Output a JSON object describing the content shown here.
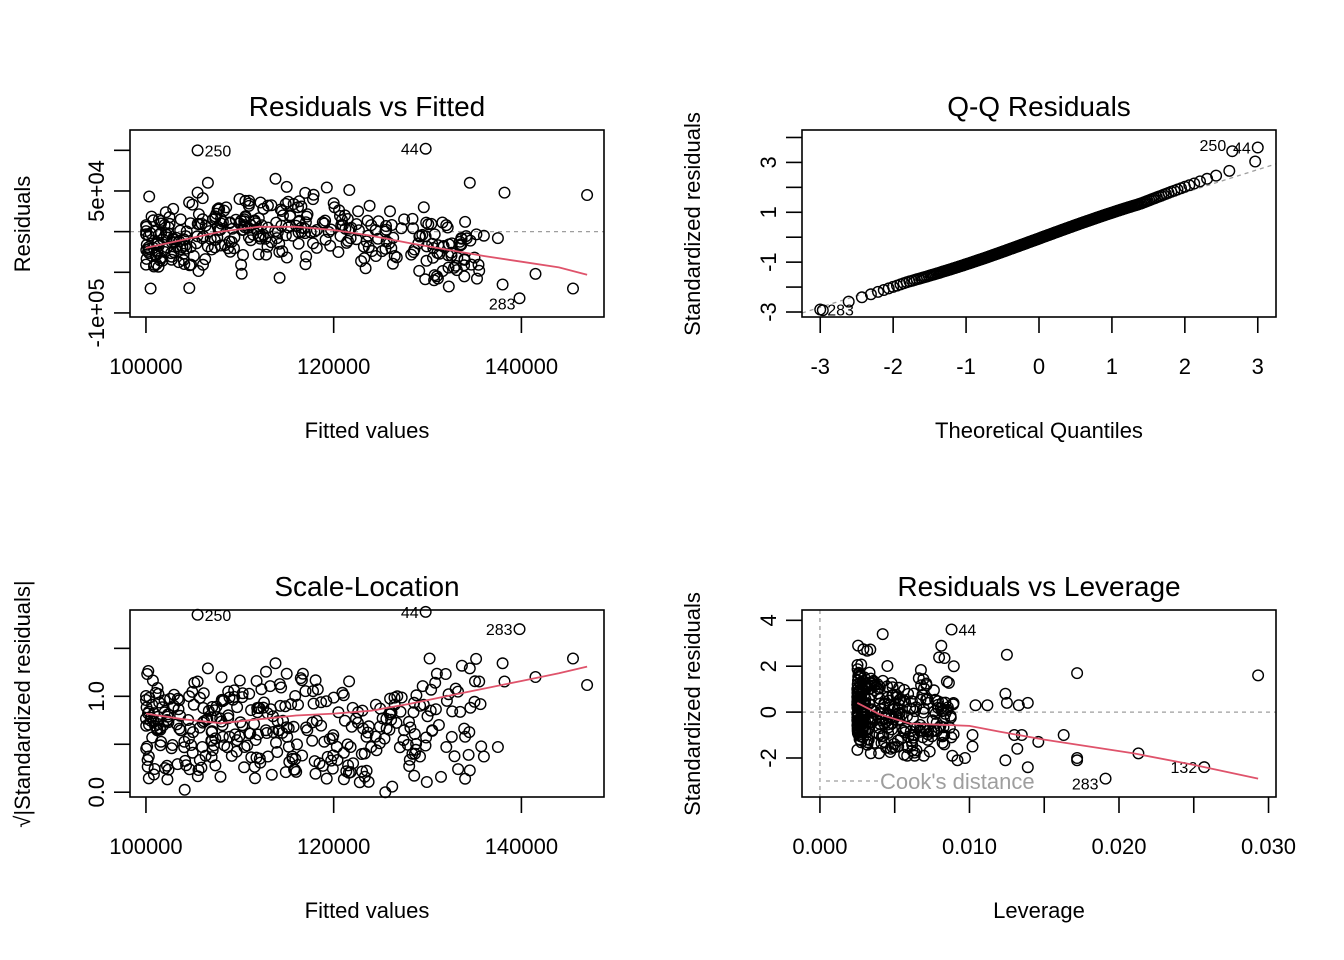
{
  "chart_data": [
    {
      "id": "residuals-vs-fitted",
      "type": "scatter",
      "title": "Residuals vs Fitted",
      "xlabel": "Fitted values",
      "ylabel": "Residuals",
      "xlim": [
        98300,
        148800
      ],
      "ylim": [
        -105000,
        125000
      ],
      "xticks": [
        100000,
        120000,
        140000
      ],
      "xtick_labels": [
        "100000",
        "120000",
        "140000"
      ],
      "yticks": [
        -100000,
        -50000,
        0,
        50000,
        100000
      ],
      "ytick_labels": [
        "-1e+05",
        "",
        "",
        "5e+04",
        ""
      ],
      "reference_line": {
        "y": 0,
        "style": "dotted"
      },
      "smooth_color": "#DF536B",
      "smooth": [
        [
          100000,
          -20000
        ],
        [
          104000,
          -10000
        ],
        [
          108000,
          0
        ],
        [
          112000,
          6000
        ],
        [
          116000,
          6000
        ],
        [
          120000,
          2000
        ],
        [
          124000,
          -5000
        ],
        [
          128000,
          -14000
        ],
        [
          132000,
          -22000
        ],
        [
          136000,
          -30000
        ],
        [
          140000,
          -37000
        ],
        [
          144000,
          -44000
        ],
        [
          147000,
          -53000
        ]
      ],
      "labeled_points": [
        {
          "label": "250",
          "x": 105500,
          "y": 100000
        },
        {
          "label": "44",
          "x": 129800,
          "y": 102000
        },
        {
          "label": "283",
          "x": 139800,
          "y": -82000
        }
      ],
      "points_sample": [
        [
          100300,
          -5000
        ],
        [
          100800,
          -20000
        ],
        [
          101200,
          -15000
        ],
        [
          101600,
          10000
        ],
        [
          102000,
          -25000
        ],
        [
          102400,
          -2000
        ],
        [
          102900,
          28000
        ],
        [
          103300,
          -18000
        ],
        [
          103700,
          15000
        ],
        [
          104100,
          -10000
        ],
        [
          104600,
          36000
        ],
        [
          105100,
          -30000
        ],
        [
          105500,
          48000
        ],
        [
          106000,
          -8000
        ],
        [
          106600,
          60000
        ],
        [
          107000,
          -22000
        ],
        [
          107500,
          22000
        ],
        [
          108200,
          12000
        ],
        [
          108900,
          -12000
        ],
        [
          110500,
          8000
        ],
        [
          111000,
          38000
        ],
        [
          112000,
          -28000
        ],
        [
          112500,
          28000
        ],
        [
          113000,
          5000
        ],
        [
          113800,
          65000
        ],
        [
          114200,
          -15000
        ],
        [
          114600,
          20000
        ],
        [
          115000,
          55000
        ],
        [
          115600,
          -5000
        ],
        [
          116200,
          30000
        ],
        [
          117000,
          -40000
        ],
        [
          117800,
          40000
        ],
        [
          118200,
          -20000
        ],
        [
          119000,
          10000
        ],
        [
          120000,
          35000
        ],
        [
          120500,
          -25000
        ],
        [
          121200,
          20000
        ],
        [
          121800,
          -8000
        ],
        [
          122600,
          25000
        ],
        [
          123500,
          -12000
        ],
        [
          124000,
          8000
        ],
        [
          124500,
          -30000
        ],
        [
          125500,
          0
        ],
        [
          126000,
          25000
        ],
        [
          126500,
          -30000
        ],
        [
          127500,
          15000
        ],
        [
          128500,
          -25000
        ],
        [
          129200,
          -5000
        ],
        [
          129600,
          30000
        ],
        [
          130500,
          -15000
        ],
        [
          131000,
          -55000
        ],
        [
          132000,
          8000
        ],
        [
          133000,
          -42000
        ],
        [
          134000,
          12000
        ],
        [
          134500,
          60000
        ],
        [
          135000,
          -32000
        ],
        [
          135500,
          -48000
        ],
        [
          136000,
          -5000
        ],
        [
          137500,
          -8000
        ],
        [
          138000,
          -65000
        ],
        [
          138200,
          48000
        ],
        [
          141500,
          -52000
        ],
        [
          145500,
          -70000
        ],
        [
          147000,
          45000
        ]
      ]
    },
    {
      "id": "qq-residuals",
      "type": "scatter",
      "title": "Q-Q Residuals",
      "xlabel": "Theoretical Quantiles",
      "ylabel": "Standardized residuals",
      "xlim": [
        -3.25,
        3.25
      ],
      "ylim": [
        -3.2,
        4.3
      ],
      "xticks": [
        -3,
        -2,
        -1,
        0,
        1,
        2,
        3
      ],
      "xtick_labels": [
        "-3",
        "-2",
        "-1",
        "0",
        "1",
        "2",
        "3"
      ],
      "yticks": [
        -3,
        -2,
        -1,
        0,
        1,
        2,
        3,
        4
      ],
      "ytick_labels": [
        "-3",
        "",
        "-1",
        "",
        "1",
        "",
        "3",
        ""
      ],
      "reference_line": {
        "slope": 0.92,
        "intercept": -0.05,
        "style": "dotted"
      },
      "labeled_points": [
        {
          "label": "283",
          "x": -3.0,
          "y": -2.9
        },
        {
          "label": "250",
          "x": 2.65,
          "y": 3.45
        },
        {
          "label": "44",
          "x": 3.0,
          "y": 3.6
        }
      ]
    },
    {
      "id": "scale-location",
      "type": "scatter",
      "title": "Scale-Location",
      "xlabel": "Fitted values",
      "ylabel": "√|Standardized residuals|",
      "xlim": [
        98300,
        148800
      ],
      "ylim": [
        -0.05,
        1.9
      ],
      "xticks": [
        100000,
        120000,
        140000
      ],
      "xtick_labels": [
        "100000",
        "120000",
        "140000"
      ],
      "yticks": [
        0,
        0.5,
        1.0,
        1.5
      ],
      "ytick_labels": [
        "0.0",
        "",
        "1.0",
        ""
      ],
      "smooth_color": "#DF536B",
      "smooth": [
        [
          100000,
          0.82
        ],
        [
          104000,
          0.76
        ],
        [
          108000,
          0.72
        ],
        [
          112000,
          0.76
        ],
        [
          116000,
          0.8
        ],
        [
          120000,
          0.82
        ],
        [
          124000,
          0.85
        ],
        [
          128000,
          0.92
        ],
        [
          132000,
          1.0
        ],
        [
          136000,
          1.08
        ],
        [
          140000,
          1.16
        ],
        [
          144000,
          1.24
        ],
        [
          147000,
          1.31
        ]
      ],
      "labeled_points": [
        {
          "label": "250",
          "x": 105500,
          "y": 1.85
        },
        {
          "label": "44",
          "x": 129800,
          "y": 1.88
        },
        {
          "label": "283",
          "x": 139800,
          "y": 1.7
        }
      ]
    },
    {
      "id": "residuals-vs-leverage",
      "type": "scatter",
      "title": "Residuals vs Leverage",
      "xlabel": "Leverage",
      "ylabel": "Standardized residuals",
      "xlim": [
        -0.0012,
        0.0305
      ],
      "ylim": [
        -3.7,
        4.45
      ],
      "xticks": [
        0.0,
        0.005,
        0.01,
        0.015,
        0.02,
        0.025,
        0.03
      ],
      "xtick_labels": [
        "0.000",
        "",
        "0.010",
        "",
        "0.020",
        "",
        "0.030"
      ],
      "yticks": [
        -2,
        0,
        2,
        4
      ],
      "ytick_labels": [
        "-2",
        "0",
        "2",
        "4"
      ],
      "legend": {
        "text": "Cook's distance",
        "position": "bottom-left"
      },
      "smooth_color": "#DF536B",
      "smooth": [
        [
          0.0025,
          0.4
        ],
        [
          0.004,
          -0.1
        ],
        [
          0.006,
          -0.5
        ],
        [
          0.008,
          -0.55
        ],
        [
          0.01,
          -0.6
        ],
        [
          0.012,
          -0.85
        ],
        [
          0.015,
          -1.2
        ],
        [
          0.018,
          -1.5
        ],
        [
          0.021,
          -1.8
        ],
        [
          0.025,
          -2.3
        ],
        [
          0.0293,
          -2.9
        ]
      ],
      "labeled_points": [
        {
          "label": "44",
          "x": 0.0088,
          "y": 3.6
        },
        {
          "label": "283",
          "x": 0.0191,
          "y": -2.9
        },
        {
          "label": "132",
          "x": 0.0257,
          "y": -2.4
        }
      ],
      "points_sample": [
        [
          0.0125,
          2.5
        ],
        [
          0.0172,
          1.7
        ],
        [
          0.0293,
          1.6
        ],
        [
          0.0042,
          3.4
        ],
        [
          0.0124,
          0.8
        ],
        [
          0.0125,
          0.4
        ],
        [
          0.0133,
          0.3
        ],
        [
          0.0139,
          0.4
        ],
        [
          0.0104,
          0.3
        ],
        [
          0.0112,
          0.3
        ],
        [
          0.0124,
          -2.1
        ],
        [
          0.0132,
          -1.6
        ],
        [
          0.0139,
          -2.4
        ],
        [
          0.0146,
          -1.3
        ],
        [
          0.0163,
          -1.0
        ],
        [
          0.0172,
          -2.0
        ],
        [
          0.0172,
          -2.1
        ],
        [
          0.0213,
          -1.8
        ],
        [
          0.0097,
          -2.0
        ],
        [
          0.0102,
          -1.5
        ],
        [
          0.0102,
          -1.0
        ],
        [
          0.0092,
          -2.1
        ],
        [
          0.0135,
          -1.0
        ],
        [
          0.013,
          -1.0
        ]
      ]
    }
  ]
}
